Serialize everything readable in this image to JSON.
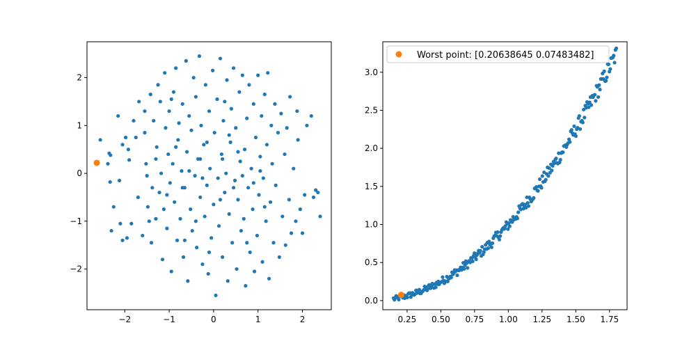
{
  "chart_data": [
    {
      "type": "scatter",
      "title": "",
      "xlabel": "",
      "ylabel": "",
      "xlim": [
        -2.85,
        2.65
      ],
      "ylim": [
        -2.85,
        2.75
      ],
      "xticks": [
        "−2",
        "−1",
        "0",
        "1",
        "2"
      ],
      "yticks": [
        "−2",
        "−1",
        "0",
        "1",
        "2"
      ],
      "xtick_values": [
        -2,
        -1,
        0,
        1,
        2
      ],
      "ytick_values": [
        -2,
        -1,
        0,
        1,
        2
      ],
      "series": [
        {
          "color": "#1f77b4",
          "points": [
            [
              -2.55,
              0.7
            ],
            [
              -2.35,
              0.42
            ],
            [
              -2.32,
              0.38
            ],
            [
              -2.38,
              0.2
            ],
            [
              -2.33,
              -0.18
            ],
            [
              -2.25,
              -0.7
            ],
            [
              -2.3,
              -1.2
            ],
            [
              -2.15,
              1.2
            ],
            [
              -2.12,
              -0.15
            ],
            [
              -2.05,
              0.6
            ],
            [
              -2.1,
              -1.05
            ],
            [
              -2.05,
              -1.4
            ],
            [
              -1.98,
              0.75
            ],
            [
              -1.95,
              -1.35
            ],
            [
              -1.92,
              0.5
            ],
            [
              -1.9,
              0.28
            ],
            [
              -1.85,
              -1.05
            ],
            [
              -1.8,
              1.1
            ],
            [
              -1.75,
              0.75
            ],
            [
              -1.7,
              -0.5
            ],
            [
              -1.68,
              1.5
            ],
            [
              -1.6,
              -1.3
            ],
            [
              -1.55,
              1.3
            ],
            [
              -1.52,
              0.2
            ],
            [
              -1.5,
              -0.05
            ],
            [
              -1.48,
              -0.7
            ],
            [
              -1.45,
              -1.0
            ],
            [
              -1.42,
              1.65
            ],
            [
              -1.4,
              -1.45
            ],
            [
              -1.38,
              -0.3
            ],
            [
              -1.35,
              1.1
            ],
            [
              -1.3,
              -0.95
            ],
            [
              -1.28,
              0.55
            ],
            [
              -1.25,
              1.85
            ],
            [
              -1.22,
              -0.4
            ],
            [
              -1.2,
              1.5
            ],
            [
              -1.18,
              0.0
            ],
            [
              -1.15,
              -1.8
            ],
            [
              -1.12,
              -0.75
            ],
            [
              -1.1,
              2.1
            ],
            [
              -1.08,
              0.95
            ],
            [
              -1.05,
              -1.15
            ],
            [
              -1.02,
              0.4
            ],
            [
              -1.0,
              1.3
            ],
            [
              -0.98,
              -0.2
            ],
            [
              -0.95,
              -2.05
            ],
            [
              -0.92,
              0.2
            ],
            [
              -0.9,
              1.7
            ],
            [
              -0.88,
              -0.6
            ],
            [
              -0.85,
              2.2
            ],
            [
              -0.82,
              -1.4
            ],
            [
              -0.8,
              0.7
            ],
            [
              -0.78,
              1.05
            ],
            [
              -0.75,
              -0.95
            ],
            [
              -0.72,
              0.05
            ],
            [
              -0.7,
              1.45
            ],
            [
              -0.68,
              -1.75
            ],
            [
              -0.65,
              -0.3
            ],
            [
              -0.62,
              2.35
            ],
            [
              -0.6,
              0.45
            ],
            [
              -0.58,
              -2.25
            ],
            [
              -0.55,
              1.2
            ],
            [
              -0.52,
              -0.75
            ],
            [
              -0.5,
              0.9
            ],
            [
              -0.48,
              -1.2
            ],
            [
              -0.45,
              2.0
            ],
            [
              -0.42,
              -0.05
            ],
            [
              -0.4,
              1.6
            ],
            [
              -0.38,
              -1.55
            ],
            [
              -0.35,
              0.3
            ],
            [
              -0.32,
              2.45
            ],
            [
              -0.3,
              -0.5
            ],
            [
              -0.28,
              1.0
            ],
            [
              -0.25,
              -1.9
            ],
            [
              -0.22,
              0.6
            ],
            [
              -0.2,
              -0.9
            ],
            [
              -0.18,
              1.85
            ],
            [
              -0.15,
              -0.25
            ],
            [
              -0.12,
              -2.1
            ],
            [
              -0.1,
              1.3
            ],
            [
              -0.08,
              0.1
            ],
            [
              -0.05,
              -1.35
            ],
            [
              -0.02,
              2.15
            ],
            [
              0.0,
              -0.65
            ],
            [
              0.02,
              0.85
            ],
            [
              0.05,
              -2.55
            ],
            [
              0.08,
              1.55
            ],
            [
              0.1,
              -0.1
            ],
            [
              0.12,
              -1.1
            ],
            [
              0.15,
              2.4
            ],
            [
              0.18,
              0.4
            ],
            [
              0.2,
              -1.75
            ],
            [
              0.22,
              1.1
            ],
            [
              0.25,
              -0.4
            ],
            [
              0.28,
              0.0
            ],
            [
              0.3,
              1.95
            ],
            [
              0.32,
              -2.25
            ],
            [
              0.35,
              -0.85
            ],
            [
              0.38,
              0.65
            ],
            [
              0.4,
              1.35
            ],
            [
              0.42,
              -1.45
            ],
            [
              0.45,
              2.2
            ],
            [
              0.48,
              -0.15
            ],
            [
              0.5,
              0.95
            ],
            [
              0.52,
              -2.0
            ],
            [
              0.55,
              -0.55
            ],
            [
              0.58,
              1.7
            ],
            [
              0.6,
              0.25
            ],
            [
              0.62,
              -1.2
            ],
            [
              0.65,
              2.05
            ],
            [
              0.68,
              -0.95
            ],
            [
              0.7,
              0.5
            ],
            [
              0.72,
              -2.35
            ],
            [
              0.75,
              1.15
            ],
            [
              0.78,
              -0.3
            ],
            [
              0.8,
              1.85
            ],
            [
              0.82,
              -1.65
            ],
            [
              0.85,
              0.1
            ],
            [
              0.88,
              -0.75
            ],
            [
              0.9,
              1.45
            ],
            [
              0.92,
              -2.05
            ],
            [
              0.95,
              0.75
            ],
            [
              0.98,
              -1.3
            ],
            [
              1.0,
              2.05
            ],
            [
              1.02,
              -0.45
            ],
            [
              1.05,
              0.35
            ],
            [
              1.08,
              1.2
            ],
            [
              1.1,
              -1.85
            ],
            [
              1.12,
              -0.1
            ],
            [
              1.15,
              1.65
            ],
            [
              1.18,
              -1.0
            ],
            [
              1.2,
              0.6
            ],
            [
              1.22,
              2.1
            ],
            [
              1.25,
              -2.2
            ],
            [
              1.28,
              -0.6
            ],
            [
              1.3,
              1.0
            ],
            [
              1.32,
              0.2
            ],
            [
              1.35,
              -1.45
            ],
            [
              1.38,
              1.45
            ],
            [
              1.4,
              -0.25
            ],
            [
              1.45,
              0.85
            ],
            [
              1.48,
              -1.75
            ],
            [
              1.52,
              1.25
            ],
            [
              1.55,
              -0.9
            ],
            [
              1.6,
              0.4
            ],
            [
              1.62,
              -1.5
            ],
            [
              1.65,
              0.95
            ],
            [
              1.7,
              -0.55
            ],
            [
              1.72,
              1.6
            ],
            [
              1.75,
              -1.25
            ],
            [
              1.8,
              0.1
            ],
            [
              1.85,
              -1.0
            ],
            [
              1.88,
              1.3
            ],
            [
              1.9,
              0.7
            ],
            [
              1.95,
              -0.75
            ],
            [
              2.0,
              -1.25
            ],
            [
              2.05,
              -0.45
            ],
            [
              2.1,
              1.0
            ],
            [
              2.2,
              1.2
            ],
            [
              2.25,
              -0.5
            ],
            [
              2.3,
              -0.35
            ],
            [
              2.35,
              -0.4
            ],
            [
              2.4,
              -0.9
            ],
            [
              -1.3,
              0.3
            ],
            [
              -0.3,
              0.3
            ],
            [
              0.2,
              0.3
            ],
            [
              -0.7,
              -0.3
            ],
            [
              0.45,
              -0.3
            ],
            [
              -0.15,
              0.65
            ],
            [
              0.65,
              -0.05
            ],
            [
              -0.55,
              0.05
            ],
            [
              1.05,
              0.05
            ],
            [
              -1.05,
              -0.45
            ],
            [
              0.35,
              0.8
            ],
            [
              -0.4,
              -1.0
            ],
            [
              0.15,
              -0.55
            ],
            [
              0.9,
              -0.2
            ],
            [
              -0.85,
              0.55
            ],
            [
              -0.25,
              -0.1
            ],
            [
              0.55,
              0.45
            ],
            [
              -0.65,
              -1.4
            ],
            [
              0.25,
              1.5
            ],
            [
              -1.55,
              0.85
            ],
            [
              -0.1,
              -1.65
            ],
            [
              1.15,
              -0.7
            ],
            [
              -0.95,
              1.55
            ],
            [
              0.75,
              -1.45
            ]
          ]
        },
        {
          "color": "#ff7f0e",
          "points": [
            [
              -2.63,
              0.22
            ]
          ]
        }
      ]
    },
    {
      "type": "scatter",
      "title": "",
      "xlabel": "",
      "ylabel": "",
      "xlim": [
        0.07,
        1.88
      ],
      "ylim": [
        -0.12,
        3.4
      ],
      "xticks": [
        "0.25",
        "0.50",
        "0.75",
        "1.00",
        "1.25",
        "1.50",
        "1.75"
      ],
      "yticks": [
        "0.0",
        "0.5",
        "1.0",
        "1.5",
        "2.0",
        "2.5",
        "3.0"
      ],
      "xtick_values": [
        0.25,
        0.5,
        0.75,
        1.0,
        1.25,
        1.5,
        1.75
      ],
      "ytick_values": [
        0.0,
        0.5,
        1.0,
        1.5,
        2.0,
        2.5,
        3.0
      ],
      "curve": {
        "x_start": 0.15,
        "x_end": 1.8,
        "count": 260,
        "exponent": 2,
        "jitter": 0.05,
        "color": "#1f77b4"
      },
      "series": [
        {
          "name": "Worst point: [0.20638645 0.07483482]",
          "color": "#ff7f0e",
          "points": [
            [
              0.206,
              0.075
            ]
          ]
        }
      ],
      "legend": {
        "position": "top-left",
        "label": "Worst point: [0.20638645 0.07483482]"
      }
    }
  ]
}
